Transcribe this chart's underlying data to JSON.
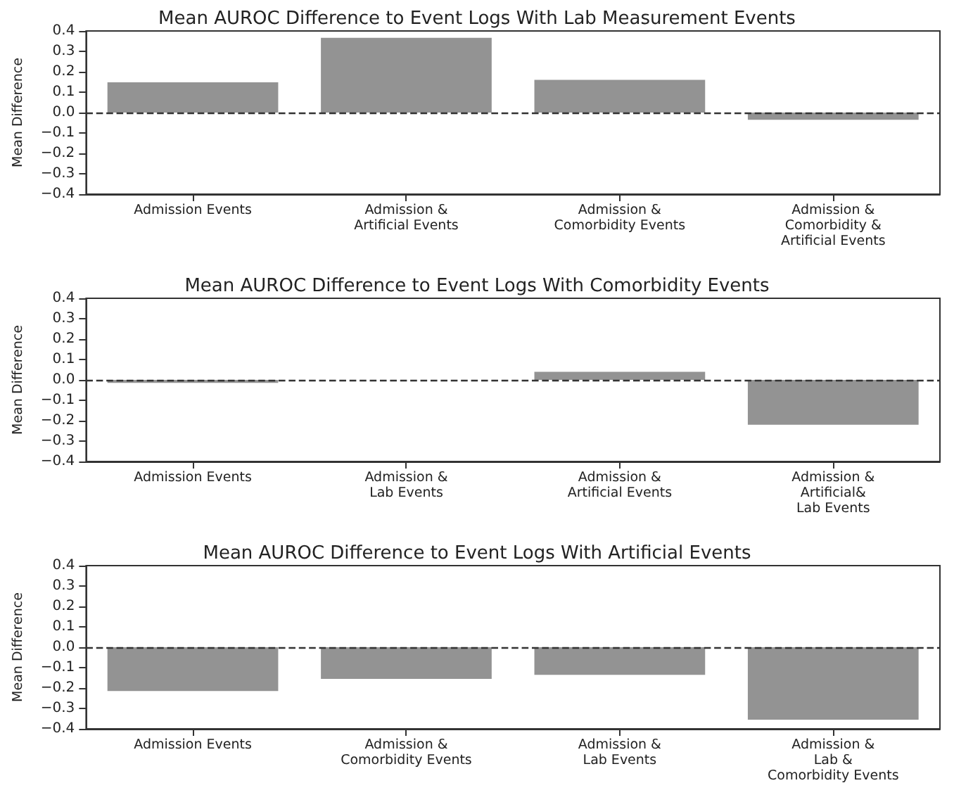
{
  "chart_data": [
    {
      "type": "bar",
      "title": "Mean AUROC Difference to Event Logs With Lab Measurement Events",
      "ylabel": "Mean Difference",
      "categories": [
        "Admission Events",
        "Admission &\nArtificial Events",
        "Admission &\nComorbidity Events",
        "Admission &\nComorbidity &\nArtificial Events"
      ],
      "values": [
        0.148,
        0.366,
        0.16,
        -0.035
      ],
      "color": "#939393",
      "ylim": [
        -0.4,
        0.4
      ],
      "yticks": [
        {
          "value": -0.4,
          "label": "−0.4"
        },
        {
          "value": -0.3,
          "label": "−0.3"
        },
        {
          "value": -0.2,
          "label": "−0.2"
        },
        {
          "value": -0.1,
          "label": "−0.1"
        },
        {
          "value": 0,
          "label": "0.0"
        },
        {
          "value": 0.1,
          "label": "0.1"
        },
        {
          "value": 0.2,
          "label": "0.2"
        },
        {
          "value": 0.3,
          "label": "0.3"
        },
        {
          "value": 0.4,
          "label": "0.4"
        }
      ],
      "ref_lines": [
        {
          "axis": "y",
          "value": 0,
          "color": "#333333",
          "line_style": "dashed"
        }
      ],
      "grid": false
    },
    {
      "type": "bar",
      "title": "Mean AUROC Difference to Event Logs With Comorbidity Events",
      "ylabel": "Mean Difference",
      "categories": [
        "Admission Events",
        "Admission &\nLab Events",
        "Admission &\nArtificial Events",
        "Admission &\nArtificial&\nLab Events"
      ],
      "values": [
        -0.015,
        null,
        0.04,
        -0.22
      ],
      "color": "#939393",
      "ylim": [
        -0.4,
        0.4
      ],
      "yticks": [
        {
          "value": -0.4,
          "label": "−0.4"
        },
        {
          "value": -0.3,
          "label": "−0.3"
        },
        {
          "value": -0.2,
          "label": "−0.2"
        },
        {
          "value": -0.1,
          "label": "−0.1"
        },
        {
          "value": 0,
          "label": "0.0"
        },
        {
          "value": 0.1,
          "label": "0.1"
        },
        {
          "value": 0.2,
          "label": "0.2"
        },
        {
          "value": 0.3,
          "label": "0.3"
        },
        {
          "value": 0.4,
          "label": "0.4"
        }
      ],
      "ref_lines": [
        {
          "axis": "y",
          "value": 0,
          "color": "#333333",
          "line_style": "dashed"
        }
      ],
      "grid": false
    },
    {
      "type": "bar",
      "title": "Mean AUROC Difference to Event Logs With Artificial Events",
      "ylabel": "Mean Difference",
      "categories": [
        "Admission Events",
        "Admission &\nComorbidity Events",
        "Admission &\nLab Events",
        "Admission &\nLab &\nComorbidity Events"
      ],
      "values": [
        -0.215,
        -0.155,
        -0.135,
        -0.355
      ],
      "color": "#939393",
      "ylim": [
        -0.4,
        0.4
      ],
      "yticks": [
        {
          "value": -0.4,
          "label": "−0.4"
        },
        {
          "value": -0.3,
          "label": "−0.3"
        },
        {
          "value": -0.2,
          "label": "−0.2"
        },
        {
          "value": -0.1,
          "label": "−0.1"
        },
        {
          "value": 0,
          "label": "0.0"
        },
        {
          "value": 0.1,
          "label": "0.1"
        },
        {
          "value": 0.2,
          "label": "0.2"
        },
        {
          "value": 0.3,
          "label": "0.3"
        },
        {
          "value": 0.4,
          "label": "0.4"
        }
      ],
      "ref_lines": [
        {
          "axis": "y",
          "value": 0,
          "color": "#333333",
          "line_style": "dashed"
        }
      ],
      "grid": false
    }
  ]
}
